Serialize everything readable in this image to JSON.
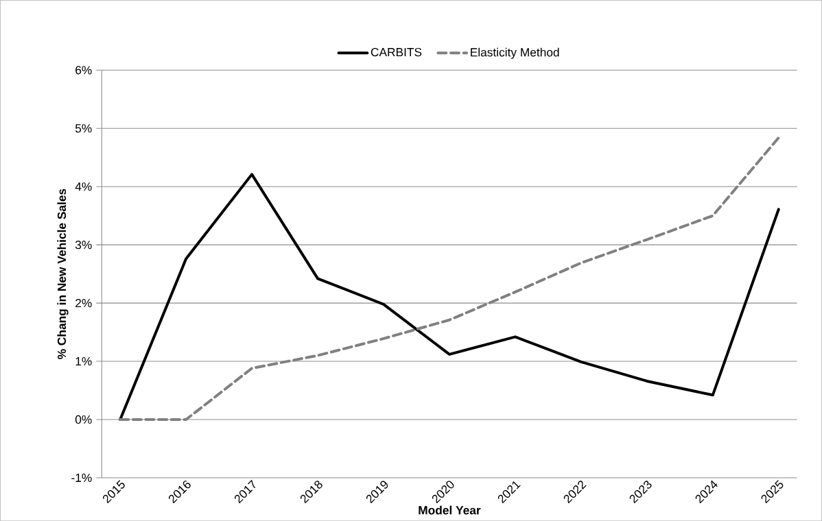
{
  "chart_data": {
    "type": "line",
    "xlabel": "Model Year",
    "ylabel": "% Chang in New Vehicle Sales",
    "categories": [
      "2015",
      "2016",
      "2017",
      "2018",
      "2019",
      "2020",
      "2021",
      "2022",
      "2023",
      "2024",
      "2025"
    ],
    "series": [
      {
        "name": "CARBITS",
        "color": "#000000",
        "line_style": "solid",
        "values": [
          0,
          2.76,
          4.21,
          2.42,
          1.98,
          1.12,
          1.42,
          0.99,
          0.66,
          0.42,
          3.61
        ]
      },
      {
        "name": "Elasticity Method",
        "color": "#808080",
        "line_style": "dashed",
        "values": [
          0,
          0,
          0.88,
          1.1,
          1.39,
          1.71,
          2.19,
          2.69,
          3.09,
          3.5,
          4.84
        ]
      }
    ],
    "ylim": [
      -1,
      6
    ],
    "yticks": [
      {
        "value": -1,
        "label": "-1%"
      },
      {
        "value": 0,
        "label": "0%"
      },
      {
        "value": 1,
        "label": "1%"
      },
      {
        "value": 2,
        "label": "2%"
      },
      {
        "value": 3,
        "label": "3%"
      },
      {
        "value": 4,
        "label": "4%"
      },
      {
        "value": 5,
        "label": "5%"
      },
      {
        "value": 6,
        "label": "6%"
      }
    ],
    "grid": "y",
    "legend": "top",
    "marker": "none"
  }
}
